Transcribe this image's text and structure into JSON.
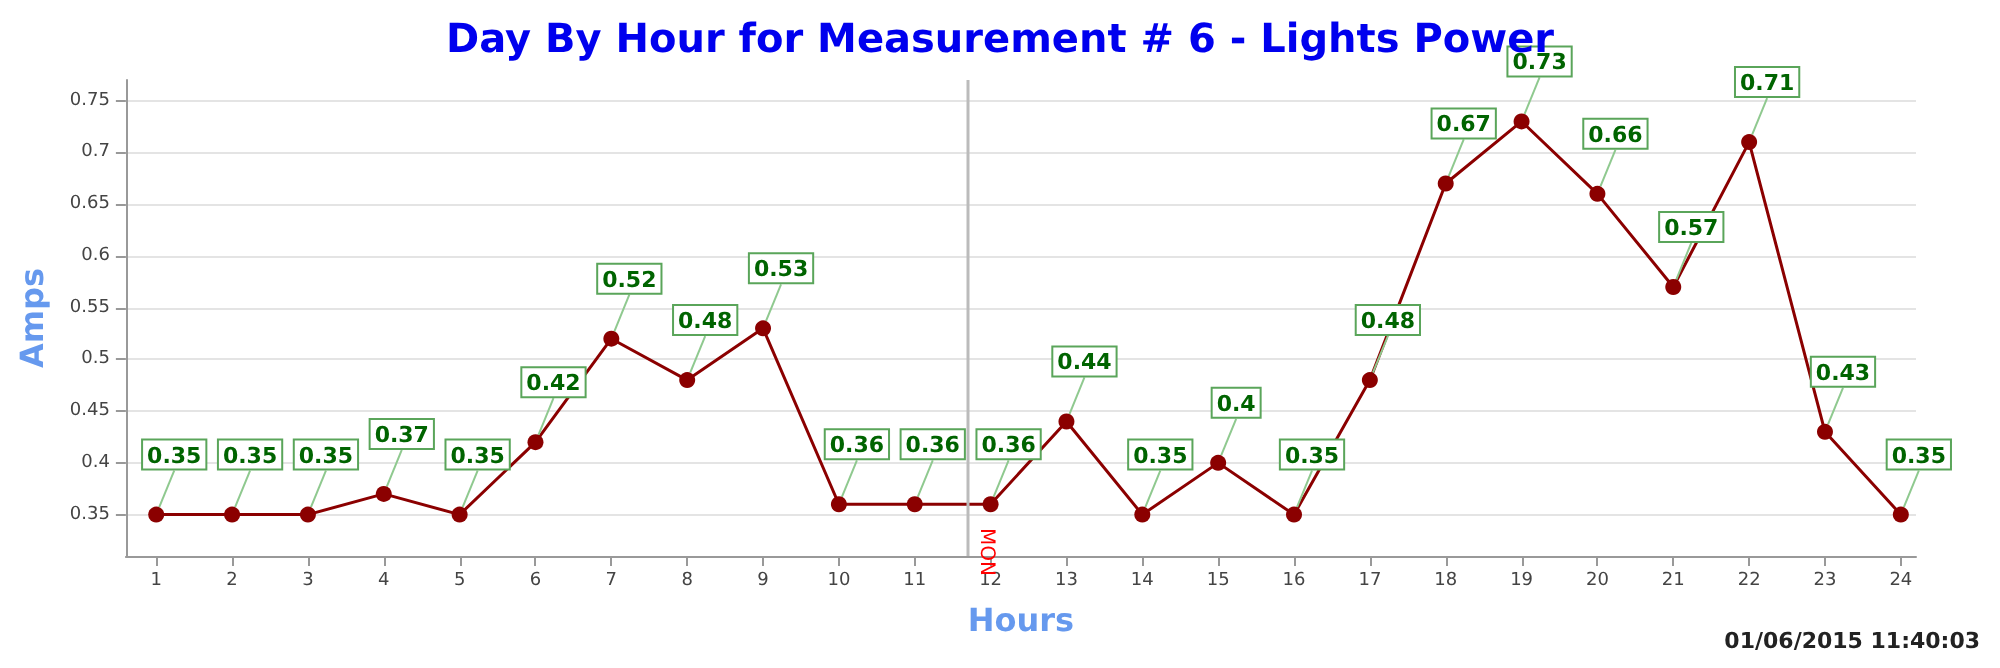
{
  "chart_data": {
    "type": "line",
    "title": "Day By Hour for Measurement # 6 - Lights Power",
    "xlabel": "Hours",
    "ylabel": "Amps",
    "x": [
      1,
      2,
      3,
      4,
      5,
      6,
      7,
      8,
      9,
      10,
      11,
      12,
      13,
      14,
      15,
      16,
      17,
      18,
      19,
      20,
      21,
      22,
      23,
      24
    ],
    "series": [
      {
        "color": "#8b0000",
        "values": [
          0.35,
          0.35,
          0.35,
          0.37,
          0.35,
          0.42,
          0.52,
          0.48,
          0.53,
          0.36,
          0.36,
          0.36,
          0.44,
          0.35,
          0.4,
          0.35,
          0.48,
          0.67,
          0.73,
          0.66,
          0.57,
          0.71,
          0.43,
          0.35
        ]
      }
    ],
    "xlim": [
      0.6,
      24.2
    ],
    "xticks": [
      1,
      2,
      3,
      4,
      5,
      6,
      7,
      8,
      9,
      10,
      11,
      12,
      13,
      14,
      15,
      16,
      17,
      18,
      19,
      20,
      21,
      22,
      23,
      24
    ],
    "ylim": [
      0.31,
      0.77
    ],
    "yticks": [
      0.35,
      0.4,
      0.45,
      0.5,
      0.55,
      0.6,
      0.65,
      0.7,
      0.75
    ],
    "ref_lines": [
      {
        "axis": "x",
        "value": 11.7,
        "label": "MON",
        "color": "#bbbbbb"
      }
    ],
    "annotations": [
      "01/06/2015 11:40:03"
    ],
    "grid": "y",
    "marker": "circle",
    "line_style": "solid",
    "data_labels": true
  }
}
